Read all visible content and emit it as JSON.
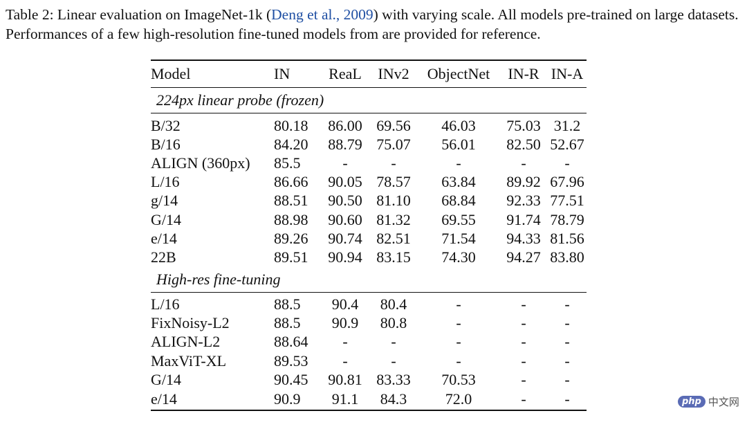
{
  "caption": {
    "before": "Table 2: Linear evaluation on ImageNet-1k (",
    "citation": "Deng et al., 2009",
    "after": ") with varying scale. All models pre-trained on large datasets. Performances of a few high-resolution fine-tuned models from are provided for reference."
  },
  "headers": [
    "Model",
    "IN",
    "ReaL",
    "INv2",
    "ObjectNet",
    "IN-R",
    "IN-A"
  ],
  "sections": [
    {
      "title": "224px linear probe (frozen)",
      "rows": [
        {
          "cells": [
            "B/32",
            "80.18",
            "86.00",
            "69.56",
            "46.03",
            "75.03",
            "31.2"
          ],
          "bold": []
        },
        {
          "cells": [
            "B/16",
            "84.20",
            "88.79",
            "75.07",
            "56.01",
            "82.50",
            "52.67"
          ],
          "bold": []
        },
        {
          "cells": [
            "ALIGN (360px)",
            "85.5",
            "-",
            "-",
            "-",
            "-",
            "-"
          ],
          "bold": []
        },
        {
          "cells": [
            "L/16",
            "86.66",
            "90.05",
            "78.57",
            "63.84",
            "89.92",
            "67.96"
          ],
          "bold": []
        },
        {
          "cells": [
            "g/14",
            "88.51",
            "90.50",
            "81.10",
            "68.84",
            "92.33",
            "77.51"
          ],
          "bold": []
        },
        {
          "cells": [
            "G/14",
            "88.98",
            "90.60",
            "81.32",
            "69.55",
            "91.74",
            "78.79"
          ],
          "bold": []
        },
        {
          "cells": [
            "e/14",
            "89.26",
            "90.74",
            "82.51",
            "71.54",
            "94.33",
            "81.56"
          ],
          "bold": [
            5
          ]
        },
        {
          "cells": [
            "22B",
            "89.51",
            "90.94",
            "83.15",
            "74.30",
            "94.27",
            "83.80"
          ],
          "bold": [
            0,
            1,
            2,
            3,
            4,
            6
          ]
        }
      ]
    },
    {
      "title": "High-res fine-tuning",
      "rows": [
        {
          "cells": [
            "L/16",
            "88.5",
            "90.4",
            "80.4",
            "-",
            "-",
            "-"
          ],
          "bold": []
        },
        {
          "cells": [
            "FixNoisy-L2",
            "88.5",
            "90.9",
            "80.8",
            "-",
            "-",
            "-"
          ],
          "bold": []
        },
        {
          "cells": [
            "ALIGN-L2",
            "88.64",
            "-",
            "-",
            "-",
            "-",
            "-"
          ],
          "bold": []
        },
        {
          "cells": [
            "MaxViT-XL",
            "89.53",
            "-",
            "-",
            "-",
            "-",
            "-"
          ],
          "bold": []
        },
        {
          "cells": [
            "G/14",
            "90.45",
            "90.81",
            "83.33",
            "70.53",
            "-",
            "-"
          ],
          "bold": []
        },
        {
          "cells": [
            "e/14",
            "90.9",
            "91.1",
            "84.3",
            "72.0",
            "-",
            "-"
          ],
          "bold": []
        }
      ]
    }
  ],
  "watermark": {
    "badge": "php",
    "text": "中文网"
  }
}
